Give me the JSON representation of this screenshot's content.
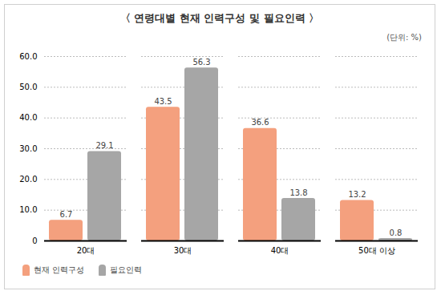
{
  "chart_data": {
    "type": "bar",
    "title": "〈 연령대별 현재 인력구성 및 필요인력 〉",
    "subtitle": "(단위: %)",
    "categories": [
      "20대",
      "30대",
      "40대",
      "50대 이상"
    ],
    "series": [
      {
        "name": "현재 인력구성",
        "color": "#f4a07e",
        "values": [
          6.7,
          43.5,
          36.6,
          13.2
        ]
      },
      {
        "name": "필요인력",
        "color": "#a6a6a6",
        "values": [
          29.1,
          56.3,
          13.8,
          0.8
        ]
      }
    ],
    "ylim": [
      0,
      60
    ],
    "yticks": [
      0,
      {
        "value": 10,
        "label": "10.0"
      },
      {
        "value": 20,
        "label": "20.0"
      },
      {
        "value": 30,
        "label": "30.0"
      },
      {
        "value": 40,
        "label": "40.0"
      },
      {
        "value": 50,
        "label": "50.0"
      },
      {
        "value": 60,
        "label": "60.0"
      }
    ],
    "grid": true,
    "data_labels": true,
    "legend": "bottom-left"
  }
}
